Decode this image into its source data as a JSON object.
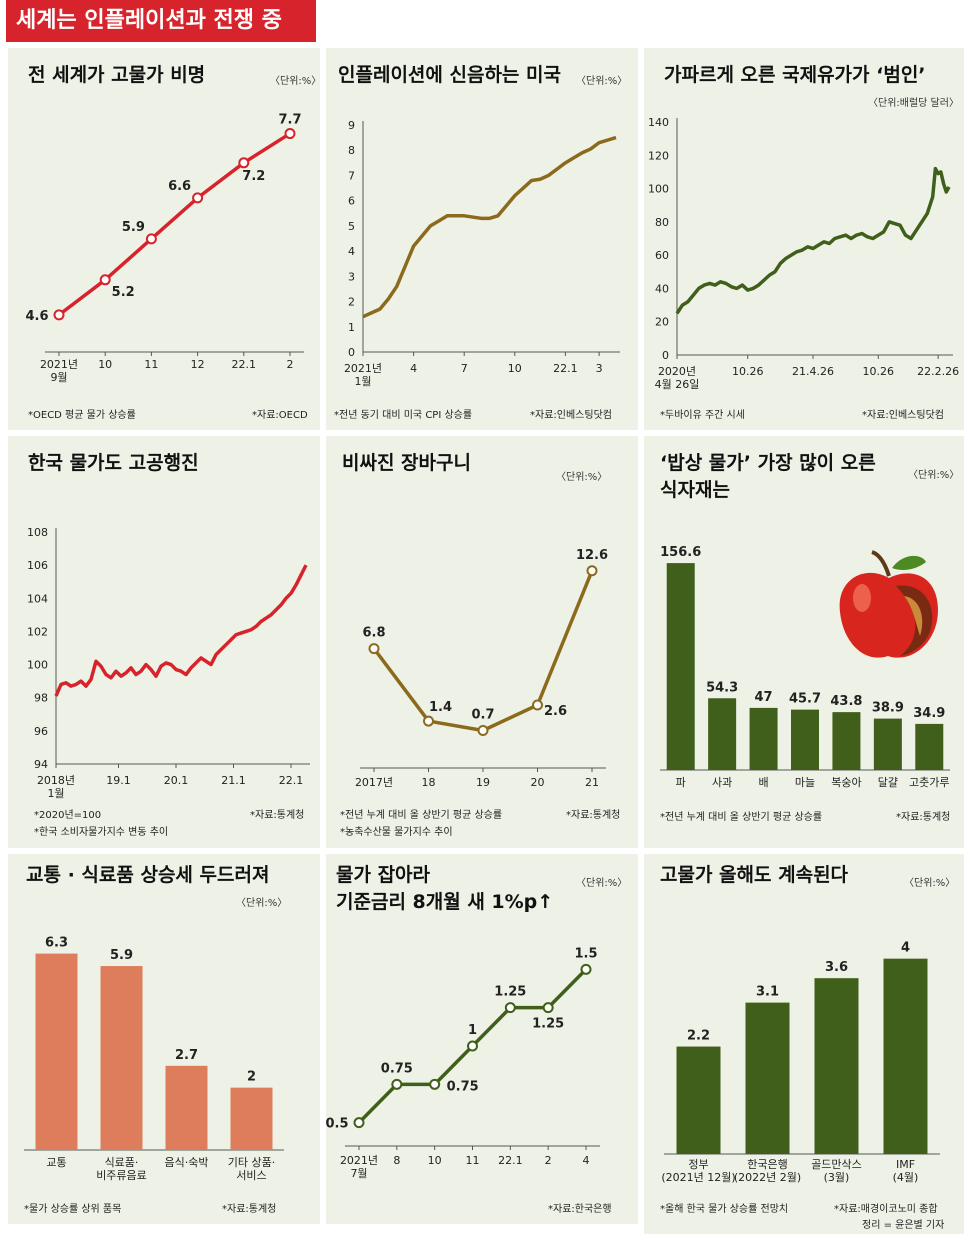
{
  "header": {
    "title": "세계는 인플레이션과 전쟁 중"
  },
  "colors": {
    "red": "#d7232b",
    "olive": "#8b6a1e",
    "green": "#3f5f1a",
    "salmon": "#dd7d5b",
    "panel_bg": "#eef2e6"
  },
  "panels": {
    "p1": {
      "title": "전 세계가 고물가 비명",
      "unit": "〈단위:%〉",
      "note": "*OECD 평균 물가 상승률",
      "source": "*자료:OECD"
    },
    "p2": {
      "title": "인플레이션에 신음하는 미국",
      "unit": "〈단위:%〉",
      "note": "*전년 동기 대비 미국 CPI 상승률",
      "source": "*자료:인베스팅닷컴"
    },
    "p3": {
      "title": "가파르게 오른 국제유가가 ‘범인’",
      "unit": "〈단위:배럴당 달러〉",
      "note": "*두바이유 주간 시세",
      "source": "*자료:인베스팅닷컴"
    },
    "p4": {
      "title": "한국 물가도 고공행진",
      "note": "*2020년=100",
      "note2": "*한국 소비자물가지수 변동 추이",
      "source": "*자료:통계청"
    },
    "p5": {
      "title": "비싸진 장바구니",
      "unit": "〈단위:%〉",
      "note": "*전년 누계 대비 올 상반기 평균 상승률",
      "note2": "*농축수산물 물가지수 추이",
      "source": "*자료:통계청"
    },
    "p6": {
      "title": "‘밥상 물가’ 가장 많이 오른\n식자재는",
      "unit": "〈단위:%〉",
      "note": "*전년 누계 대비 올 상반기 평균 상승률",
      "source": "*자료:통계청"
    },
    "p7": {
      "title": "교통 · 식료품 상승세 두드러져",
      "unit": "〈단위:%〉",
      "note": "*물가 상승률 상위 품목",
      "source": "*자료:통계청"
    },
    "p8": {
      "title": "물가 잡아라\n기준금리 8개월 새 1%p↑",
      "unit": "〈단위:%〉",
      "source": "*자료:한국은행"
    },
    "p9": {
      "title": "고물가 올해도 계속된다",
      "unit": "〈단위:%〉",
      "note": "*올해 한국 물가 상승률 전망치",
      "source": "*자료:매경이코노미 종합",
      "credit": "정리 = 윤은별 기자"
    }
  },
  "chart_data": [
    {
      "id": "p1",
      "type": "line",
      "x": [
        "2021년\n9월",
        "10",
        "11",
        "12",
        "22.1",
        "2"
      ],
      "values": [
        4.6,
        5.2,
        5.9,
        6.6,
        7.2,
        7.7
      ],
      "ylim": [
        4.0,
        8.0
      ]
    },
    {
      "id": "p2",
      "type": "line",
      "x": [
        0,
        0.5,
        1,
        1.5,
        2,
        2.5,
        3,
        3.5,
        4,
        4.5,
        5,
        5.5,
        6,
        6.5,
        7,
        7.5,
        8,
        8.5,
        9,
        9.5,
        10,
        10.5,
        11,
        11.5,
        12,
        12.5,
        13,
        13.5,
        14,
        14.5,
        15
      ],
      "values": [
        1.4,
        1.55,
        1.7,
        2.1,
        2.6,
        3.4,
        4.2,
        4.6,
        5.0,
        5.2,
        5.4,
        5.4,
        5.4,
        5.35,
        5.3,
        5.3,
        5.4,
        5.8,
        6.2,
        6.5,
        6.8,
        6.85,
        7.0,
        7.25,
        7.5,
        7.7,
        7.9,
        8.05,
        8.3,
        8.4,
        8.5
      ],
      "x_ticks": [
        {
          "x": 0,
          "label": "2021년\n1월"
        },
        {
          "x": 3,
          "label": "4"
        },
        {
          "x": 6,
          "label": "7"
        },
        {
          "x": 9,
          "label": "10"
        },
        {
          "x": 12,
          "label": "22.1"
        },
        {
          "x": 14,
          "label": "3"
        }
      ],
      "y_ticks": [
        0,
        1,
        2,
        3,
        4,
        5,
        6,
        7,
        8,
        9
      ],
      "ylim": [
        0,
        9
      ]
    },
    {
      "id": "p3",
      "type": "line",
      "x": [
        0,
        2,
        4,
        6,
        8,
        10,
        12,
        14,
        16,
        18,
        20,
        22,
        24,
        26,
        28,
        30,
        32,
        34,
        36,
        38,
        40,
        42,
        44,
        46,
        48,
        50,
        52,
        54,
        56,
        58,
        60,
        62,
        64,
        66,
        68,
        70,
        72,
        74,
        76,
        78,
        80,
        82,
        84,
        86,
        88,
        90,
        92,
        94,
        95,
        96,
        97,
        98,
        99,
        100
      ],
      "values": [
        25,
        30,
        32,
        36,
        40,
        42,
        43,
        42,
        44,
        43,
        41,
        40,
        42,
        39,
        40,
        42,
        45,
        48,
        50,
        55,
        58,
        60,
        62,
        63,
        65,
        64,
        66,
        68,
        67,
        70,
        71,
        72,
        70,
        72,
        73,
        71,
        70,
        72,
        74,
        80,
        79,
        78,
        72,
        70,
        75,
        80,
        85,
        95,
        112,
        109,
        110,
        103,
        98,
        101
      ],
      "x_ticks": [
        {
          "x": 0,
          "label": "2020년\n4월 26일"
        },
        {
          "x": 26,
          "label": "10.26"
        },
        {
          "x": 50,
          "label": "21.4.26"
        },
        {
          "x": 74,
          "label": "10.26"
        },
        {
          "x": 96,
          "label": "22.2.26"
        }
      ],
      "y_ticks": [
        0,
        20,
        40,
        60,
        80,
        100,
        120,
        140
      ],
      "ylim": [
        0,
        140
      ]
    },
    {
      "id": "p4",
      "type": "line",
      "x": [
        0,
        2,
        4,
        6,
        8,
        10,
        12,
        14,
        16,
        18,
        20,
        22,
        24,
        26,
        28,
        30,
        32,
        34,
        36,
        38,
        40,
        42,
        44,
        46,
        48,
        50,
        52,
        54,
        56,
        58,
        60,
        62,
        64,
        66,
        68,
        70,
        72,
        74,
        76,
        78,
        80,
        82,
        84,
        86,
        88,
        90,
        92,
        94,
        96,
        98,
        100
      ],
      "values": [
        98.1,
        98.8,
        98.9,
        98.7,
        98.8,
        99.0,
        98.7,
        99.1,
        100.2,
        99.9,
        99.4,
        99.2,
        99.6,
        99.3,
        99.5,
        99.8,
        99.4,
        99.6,
        100.0,
        99.7,
        99.3,
        99.9,
        100.1,
        100.0,
        99.7,
        99.6,
        99.4,
        99.8,
        100.1,
        100.4,
        100.2,
        100.0,
        100.6,
        100.9,
        101.2,
        101.5,
        101.8,
        101.9,
        102.0,
        102.1,
        102.3,
        102.6,
        102.8,
        103.0,
        103.3,
        103.6,
        104.0,
        104.3,
        104.8,
        105.4,
        106.0
      ],
      "x_ticks": [
        {
          "x": 0,
          "label": "2018년\n1월"
        },
        {
          "x": 25,
          "label": "19.1"
        },
        {
          "x": 48,
          "label": "20.1"
        },
        {
          "x": 71,
          "label": "21.1"
        },
        {
          "x": 94,
          "label": "22.1"
        }
      ],
      "y_ticks": [
        94,
        96,
        98,
        100,
        102,
        104,
        106,
        108
      ],
      "ylim": [
        94,
        108
      ]
    },
    {
      "id": "p5",
      "type": "line",
      "categories": [
        "2017년",
        "18",
        "19",
        "20",
        "21"
      ],
      "values": [
        6.8,
        1.4,
        0.7,
        2.6,
        12.6
      ],
      "ylim": [
        -1.5,
        14
      ]
    },
    {
      "id": "p6",
      "type": "bar",
      "categories": [
        "파",
        "사과",
        "배",
        "마늘",
        "복숭아",
        "달걀",
        "고춧가루"
      ],
      "values": [
        156.6,
        54.3,
        47,
        45.7,
        43.8,
        38.9,
        34.9
      ],
      "ylim": [
        0,
        165
      ]
    },
    {
      "id": "p7",
      "type": "bar",
      "categories": [
        "교통",
        "식료품·\n비주류음료",
        "음식·숙박",
        "기타 상품·\n서비스"
      ],
      "values": [
        6.3,
        5.9,
        2.7,
        2
      ],
      "ylim": [
        0,
        6.8
      ]
    },
    {
      "id": "p8",
      "type": "line",
      "categories": [
        "2021년\n7월",
        "8",
        "10",
        "11",
        "22.1",
        "2",
        "4"
      ],
      "values": [
        0.5,
        0.75,
        0.75,
        1,
        1.25,
        1.25,
        1.5
      ],
      "ylim": [
        0.4,
        1.6
      ]
    },
    {
      "id": "p9",
      "type": "bar",
      "categories": [
        "정부\n(2021년 12월)",
        "한국은행\n(2022년 2월)",
        "골드만삭스\n(3월)",
        "IMF\n(4월)"
      ],
      "values": [
        2.2,
        3.1,
        3.6,
        4
      ],
      "ylim": [
        0,
        4.3
      ]
    }
  ]
}
